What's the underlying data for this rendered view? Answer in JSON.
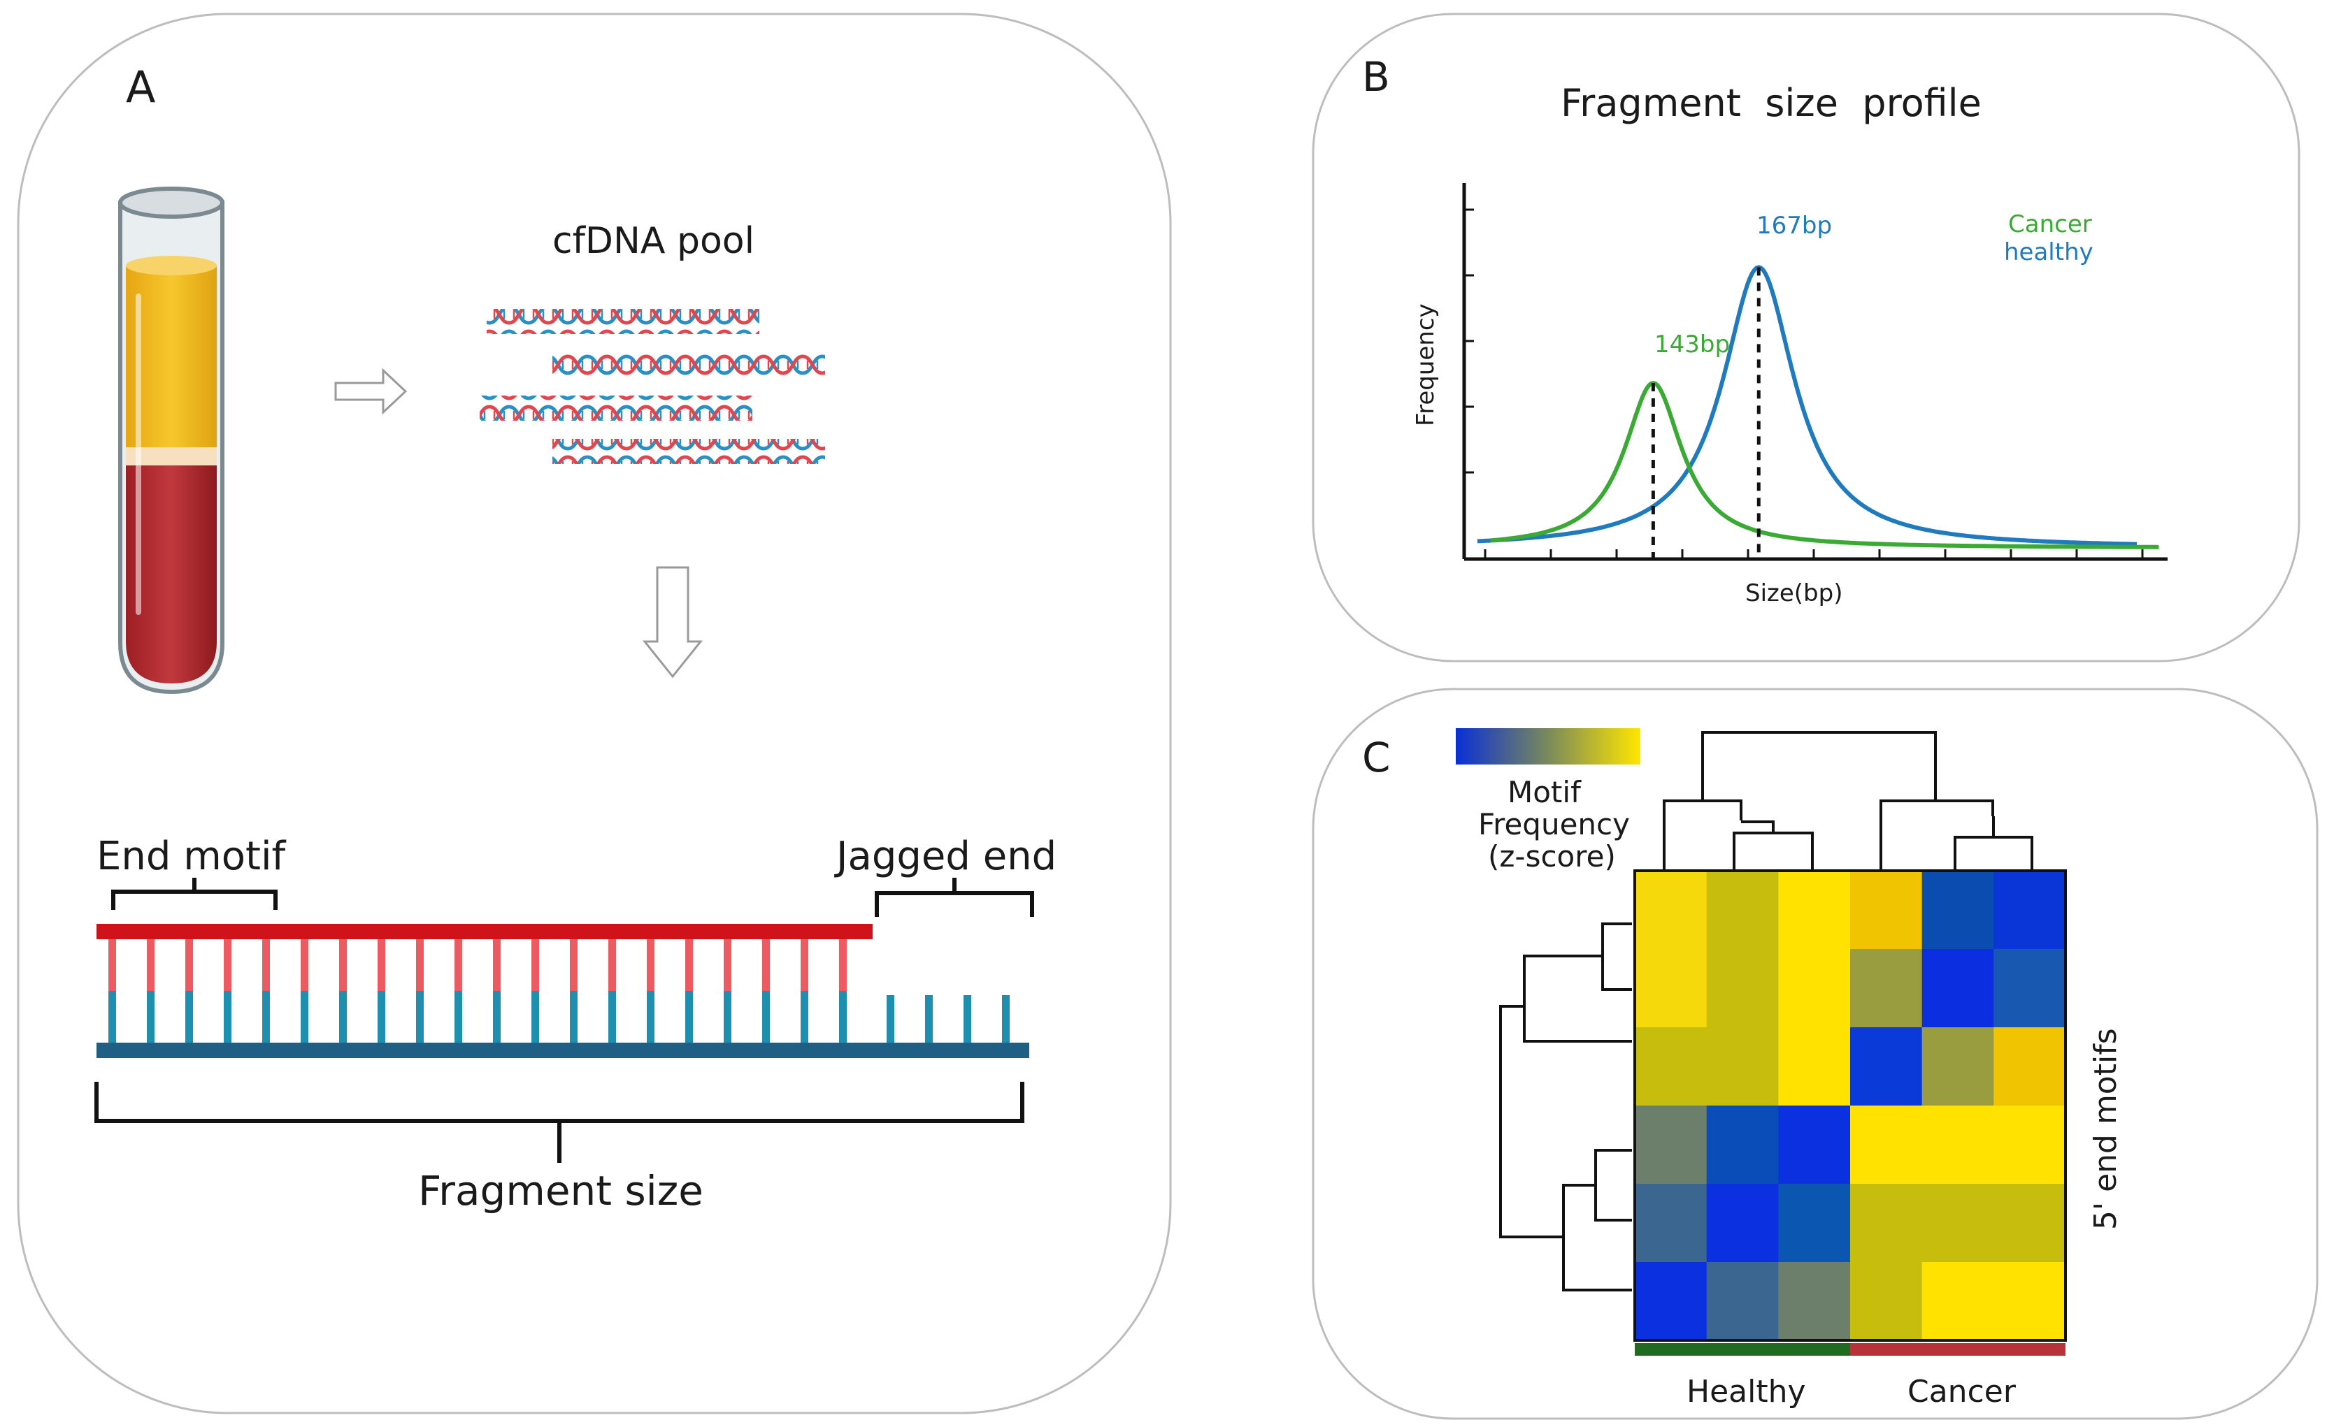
{
  "panel_a": {
    "letter": "A",
    "pool_title": "cfDNA pool",
    "end_motif_label": "End motif",
    "jagged_end_label": "Jagged end",
    "fragment_size_label": "Fragment size"
  },
  "panel_b": {
    "letter": "B",
    "chart_data": {
      "type": "line",
      "title": "Fragment  size  profile",
      "xlabel": "Size(bp)",
      "ylabel": "Frequency",
      "series": [
        {
          "name": "Cancer",
          "color": "#3aaa35",
          "peak_x": 143,
          "peak_label": "143bp",
          "relative_peak_height": 0.47
        },
        {
          "name": "healthy",
          "color": "#1f7bbd",
          "peak_x": 167,
          "peak_label": "167bp",
          "relative_peak_height": 0.8
        }
      ],
      "legend": [
        "Cancer",
        "healthy"
      ],
      "legend_position": "top-right",
      "x_range": [
        100,
        260
      ]
    }
  },
  "panel_c": {
    "letter": "C",
    "colorbar_label_1": "Motif",
    "colorbar_label_2": "Frequency",
    "colorbar_label_3": "(z-score)",
    "colorbar_low": "#0a2fd4",
    "colorbar_high": "#ffe600",
    "row_axis_label": "5' end motifs",
    "group_healthy": "Healthy",
    "group_cancer": "Cancer",
    "group_healthy_color": "#1f6b1f",
    "group_cancer_color": "#b8323a",
    "heatmap_rows": [
      [
        "#f5d90a",
        "#c6bd0c",
        "#ffe200",
        "#f0c400",
        "#0a4cb0",
        "#0a36d8"
      ],
      [
        "#f5d90a",
        "#c6bd0c",
        "#ffe200",
        "#9a9c40",
        "#0a2ee0",
        "#1858b0"
      ],
      [
        "#c6bd0c",
        "#c6bd0c",
        "#ffe200",
        "#0a3ad8",
        "#9a9c40",
        "#f0c400"
      ],
      [
        "#6b7f6a",
        "#0a4cb8",
        "#0a30e0",
        "#ffe200",
        "#ffe200",
        "#ffe200"
      ],
      [
        "#3a6690",
        "#0a30e0",
        "#0a56b0",
        "#c6bd0c",
        "#c6bd0c",
        "#c6bd0c"
      ],
      [
        "#0a30e0",
        "#3a6690",
        "#6b7f6a",
        "#c6bd0c",
        "#ffe200",
        "#ffe200"
      ]
    ]
  }
}
